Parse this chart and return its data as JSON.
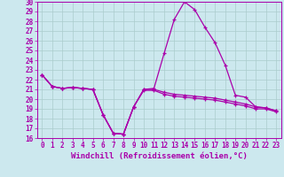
{
  "title": "",
  "xlabel": "Windchill (Refroidissement éolien,°C)",
  "ylabel": "",
  "background_color": "#cce8ee",
  "grid_color": "#aacccc",
  "line_color": "#aa00aa",
  "xlim": [
    -0.5,
    23.5
  ],
  "ylim": [
    16,
    30
  ],
  "yticks": [
    16,
    17,
    18,
    19,
    20,
    21,
    22,
    23,
    24,
    25,
    26,
    27,
    28,
    29,
    30
  ],
  "xticks": [
    0,
    1,
    2,
    3,
    4,
    5,
    6,
    7,
    8,
    9,
    10,
    11,
    12,
    13,
    14,
    15,
    16,
    17,
    18,
    19,
    20,
    21,
    22,
    23
  ],
  "series": [
    {
      "x": [
        0,
        1,
        2,
        3,
        4,
        5,
        6,
        7,
        8,
        9,
        10,
        11,
        12,
        13,
        14,
        15,
        16,
        17,
        18,
        19,
        20,
        21,
        22,
        23
      ],
      "y": [
        22.5,
        21.3,
        21.1,
        21.2,
        21.1,
        21.0,
        18.4,
        16.5,
        16.4,
        19.2,
        21.0,
        21.1,
        24.7,
        28.2,
        30.0,
        29.2,
        27.4,
        25.8,
        23.5,
        20.4,
        20.2,
        19.2,
        19.1,
        18.8
      ]
    },
    {
      "x": [
        0,
        1,
        2,
        3,
        4,
        5,
        6,
        7,
        8,
        9,
        10,
        11,
        12,
        13,
        14,
        15,
        16,
        17,
        18,
        19,
        20,
        21,
        22,
        23
      ],
      "y": [
        22.5,
        21.3,
        21.1,
        21.2,
        21.1,
        21.0,
        18.4,
        16.5,
        16.4,
        19.2,
        21.0,
        21.0,
        20.7,
        20.5,
        20.4,
        20.3,
        20.2,
        20.1,
        19.9,
        19.7,
        19.5,
        19.2,
        19.1,
        18.8
      ]
    },
    {
      "x": [
        0,
        1,
        2,
        3,
        4,
        5,
        6,
        7,
        8,
        9,
        10,
        11,
        12,
        13,
        14,
        15,
        16,
        17,
        18,
        19,
        20,
        21,
        22,
        23
      ],
      "y": [
        22.5,
        21.3,
        21.1,
        21.2,
        21.1,
        21.0,
        18.4,
        16.5,
        16.4,
        19.2,
        20.9,
        20.9,
        20.5,
        20.3,
        20.2,
        20.1,
        20.0,
        19.9,
        19.7,
        19.5,
        19.3,
        19.0,
        19.0,
        18.7
      ]
    }
  ]
}
